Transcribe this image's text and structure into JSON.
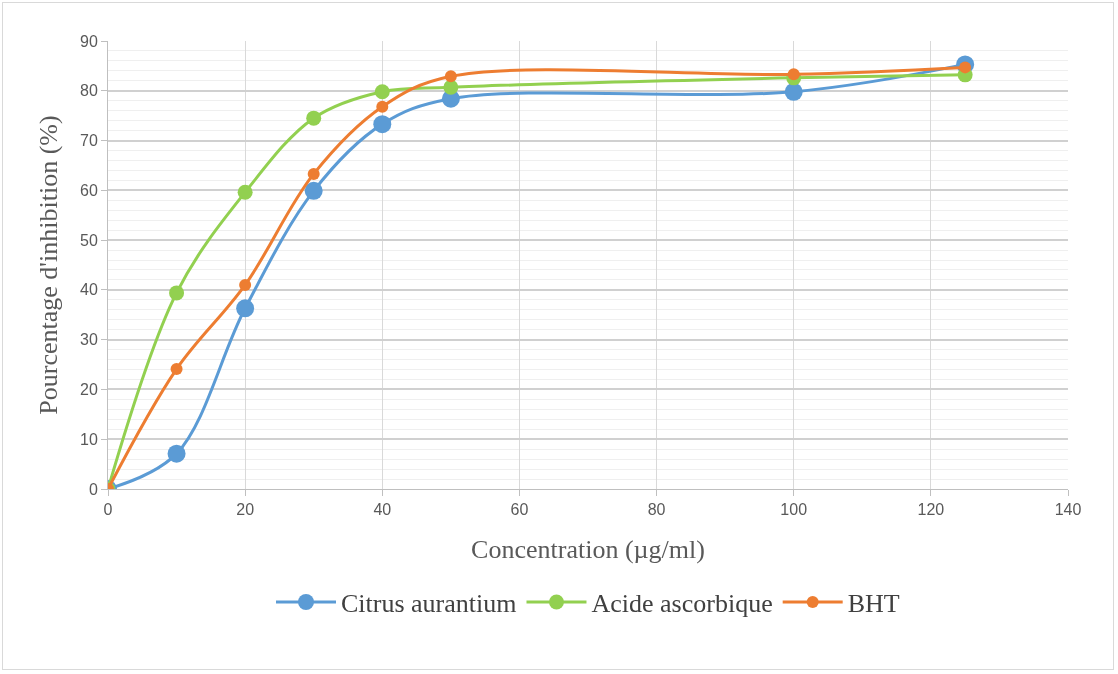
{
  "chart_data": {
    "type": "line",
    "xlabel": "Concentration (µg/ml)",
    "ylabel": "Pourcentage d'inhibition (%)",
    "x": [
      0,
      10,
      20,
      30,
      40,
      50,
      100,
      125
    ],
    "series": [
      {
        "name": "Citrus aurantium",
        "color": "#5b9bd5",
        "values": [
          0,
          7.1,
          36.3,
          59.9,
          73.3,
          78.4,
          79.8,
          85.3
        ]
      },
      {
        "name": "Acide ascorbique",
        "color": "#92d050",
        "values": [
          0,
          39.4,
          59.6,
          74.5,
          79.8,
          80.7,
          82.6,
          83.2
        ]
      },
      {
        "name": "BHT",
        "color": "#ed7d31",
        "values": [
          0,
          24.1,
          41,
          63.3,
          76.8,
          82.9,
          83.3,
          84.7
        ]
      }
    ],
    "xlim": [
      0,
      140
    ],
    "xticks": [
      0,
      20,
      40,
      60,
      80,
      100,
      120,
      140
    ],
    "ylim": [
      0,
      90
    ],
    "yticks": [
      0,
      10,
      20,
      30,
      40,
      50,
      60,
      70,
      80,
      90
    ],
    "grid": true,
    "legend": "bottom",
    "marker": "circle",
    "line_style": "solid"
  }
}
